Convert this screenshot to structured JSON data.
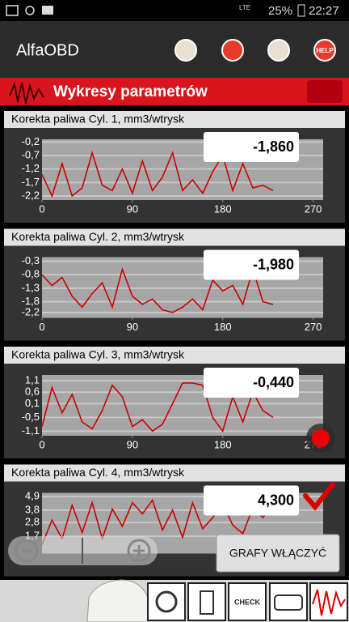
{
  "status_bar": {
    "network": "LTE",
    "battery": "25%",
    "time": "22:27"
  },
  "app_bar": {
    "title": "AlfaOBD",
    "help": "HELP"
  },
  "header": {
    "title": "Wykresy parametrów"
  },
  "charts": [
    {
      "type": "line",
      "title": "Korekta paliwa Cyl. 1, mm3/wtrysk",
      "readout": "-1,860",
      "color": "#cc0000",
      "x": [
        0,
        10,
        20,
        30,
        40,
        50,
        60,
        70,
        80,
        90,
        100,
        110,
        120,
        130,
        140,
        150,
        160,
        170,
        180,
        190,
        200,
        210,
        220,
        230
      ],
      "values": [
        -1.4,
        -2.2,
        -1.0,
        -2.2,
        -1.9,
        -0.6,
        -1.8,
        -2.0,
        -1.2,
        -2.1,
        -0.9,
        -2.0,
        -1.5,
        -0.6,
        -2.0,
        -1.6,
        -2.1,
        -1.3,
        -0.7,
        -2.0,
        -1.0,
        -1.9,
        -1.8,
        -2.0
      ],
      "xlim": [
        0,
        280
      ],
      "xticks": [
        0,
        90,
        180,
        270
      ],
      "ylim": [
        -2.35,
        -0.1
      ],
      "yticks": [
        {
          "value": -0.2,
          "label": "-0,2"
        },
        {
          "value": -0.7,
          "label": "-0,7"
        },
        {
          "value": -1.2,
          "label": "-1,2"
        },
        {
          "value": -1.7,
          "label": "-1,7"
        },
        {
          "value": -2.2,
          "label": "-2,2"
        }
      ],
      "grid": true
    },
    {
      "type": "line",
      "title": "Korekta paliwa Cyl. 2, mm3/wtrysk",
      "readout": "-1,980",
      "color": "#cc0000",
      "x": [
        0,
        10,
        20,
        30,
        40,
        50,
        60,
        70,
        80,
        90,
        100,
        110,
        120,
        130,
        140,
        150,
        160,
        170,
        180,
        190,
        200,
        210,
        220,
        230
      ],
      "values": [
        -0.8,
        -1.2,
        -0.9,
        -1.6,
        -2.0,
        -1.5,
        -1.1,
        -2.0,
        -0.6,
        -1.6,
        -1.9,
        -1.7,
        -2.1,
        -2.2,
        -2.0,
        -1.7,
        -2.1,
        -1.0,
        -1.4,
        -1.2,
        -1.9,
        -0.6,
        -1.8,
        -1.9
      ],
      "xlim": [
        0,
        280
      ],
      "xticks": [
        0,
        90,
        180,
        270
      ],
      "ylim": [
        -2.4,
        -0.15
      ],
      "yticks": [
        {
          "value": -0.3,
          "label": "-0,3"
        },
        {
          "value": -0.8,
          "label": "-0,8"
        },
        {
          "value": -1.3,
          "label": "-1,3"
        },
        {
          "value": -1.8,
          "label": "-1,8"
        },
        {
          "value": -2.2,
          "label": "-2,2"
        }
      ],
      "grid": true
    },
    {
      "type": "line",
      "title": "Korekta paliwa Cyl. 3, mm3/wtrysk",
      "readout": "-0,440",
      "color": "#cc0000",
      "x": [
        0,
        10,
        20,
        30,
        40,
        50,
        60,
        70,
        80,
        90,
        100,
        110,
        120,
        130,
        140,
        150,
        160,
        170,
        180,
        190,
        200,
        210,
        220,
        230
      ],
      "values": [
        -0.9,
        0.8,
        -0.3,
        0.5,
        -0.7,
        -1.0,
        -0.2,
        0.9,
        0.4,
        -0.9,
        -0.6,
        -1.1,
        -0.8,
        0.1,
        1.0,
        1.0,
        0.9,
        -0.5,
        -1.1,
        0.4,
        -0.7,
        0.6,
        -0.2,
        -0.5
      ],
      "xlim": [
        0,
        280
      ],
      "xticks": [
        0,
        90,
        180,
        270
      ],
      "ylim": [
        -1.3,
        1.35
      ],
      "yticks": [
        {
          "value": 1.1,
          "label": "1,1"
        },
        {
          "value": 0.6,
          "label": "0,6"
        },
        {
          "value": 0.1,
          "label": "0,1"
        },
        {
          "value": -0.5,
          "label": "-0,5"
        },
        {
          "value": -1.1,
          "label": "-1,1"
        }
      ],
      "grid": true
    },
    {
      "type": "line",
      "title": "Korekta paliwa Cyl. 4, mm3/wtrysk",
      "readout": "4,300",
      "color": "#cc0000",
      "x": [
        0,
        10,
        20,
        30,
        40,
        50,
        60,
        70,
        80,
        90,
        100,
        110,
        120,
        130,
        140,
        150,
        160,
        170,
        180,
        190,
        200,
        210,
        220,
        230
      ],
      "values": [
        1.0,
        3.0,
        1.5,
        4.2,
        2.0,
        4.4,
        1.5,
        3.9,
        2.5,
        4.4,
        3.5,
        4.6,
        2.2,
        3.8,
        1.6,
        4.4,
        2.3,
        3.2,
        4.3,
        2.6,
        1.9,
        4.0,
        3.2,
        4.3
      ],
      "xlim": [
        0,
        280
      ],
      "ylim": [
        0.3,
        5.2
      ],
      "yticks": [
        {
          "value": 4.9,
          "label": "4,9"
        },
        {
          "value": 3.8,
          "label": "3,8"
        },
        {
          "value": 2.8,
          "label": "2,8"
        },
        {
          "value": 1.7,
          "label": "1,7"
        }
      ],
      "grid": true
    }
  ],
  "button": "GRAFY WŁĄCZYĆ",
  "toolbar": {
    "check": "CHECK"
  }
}
